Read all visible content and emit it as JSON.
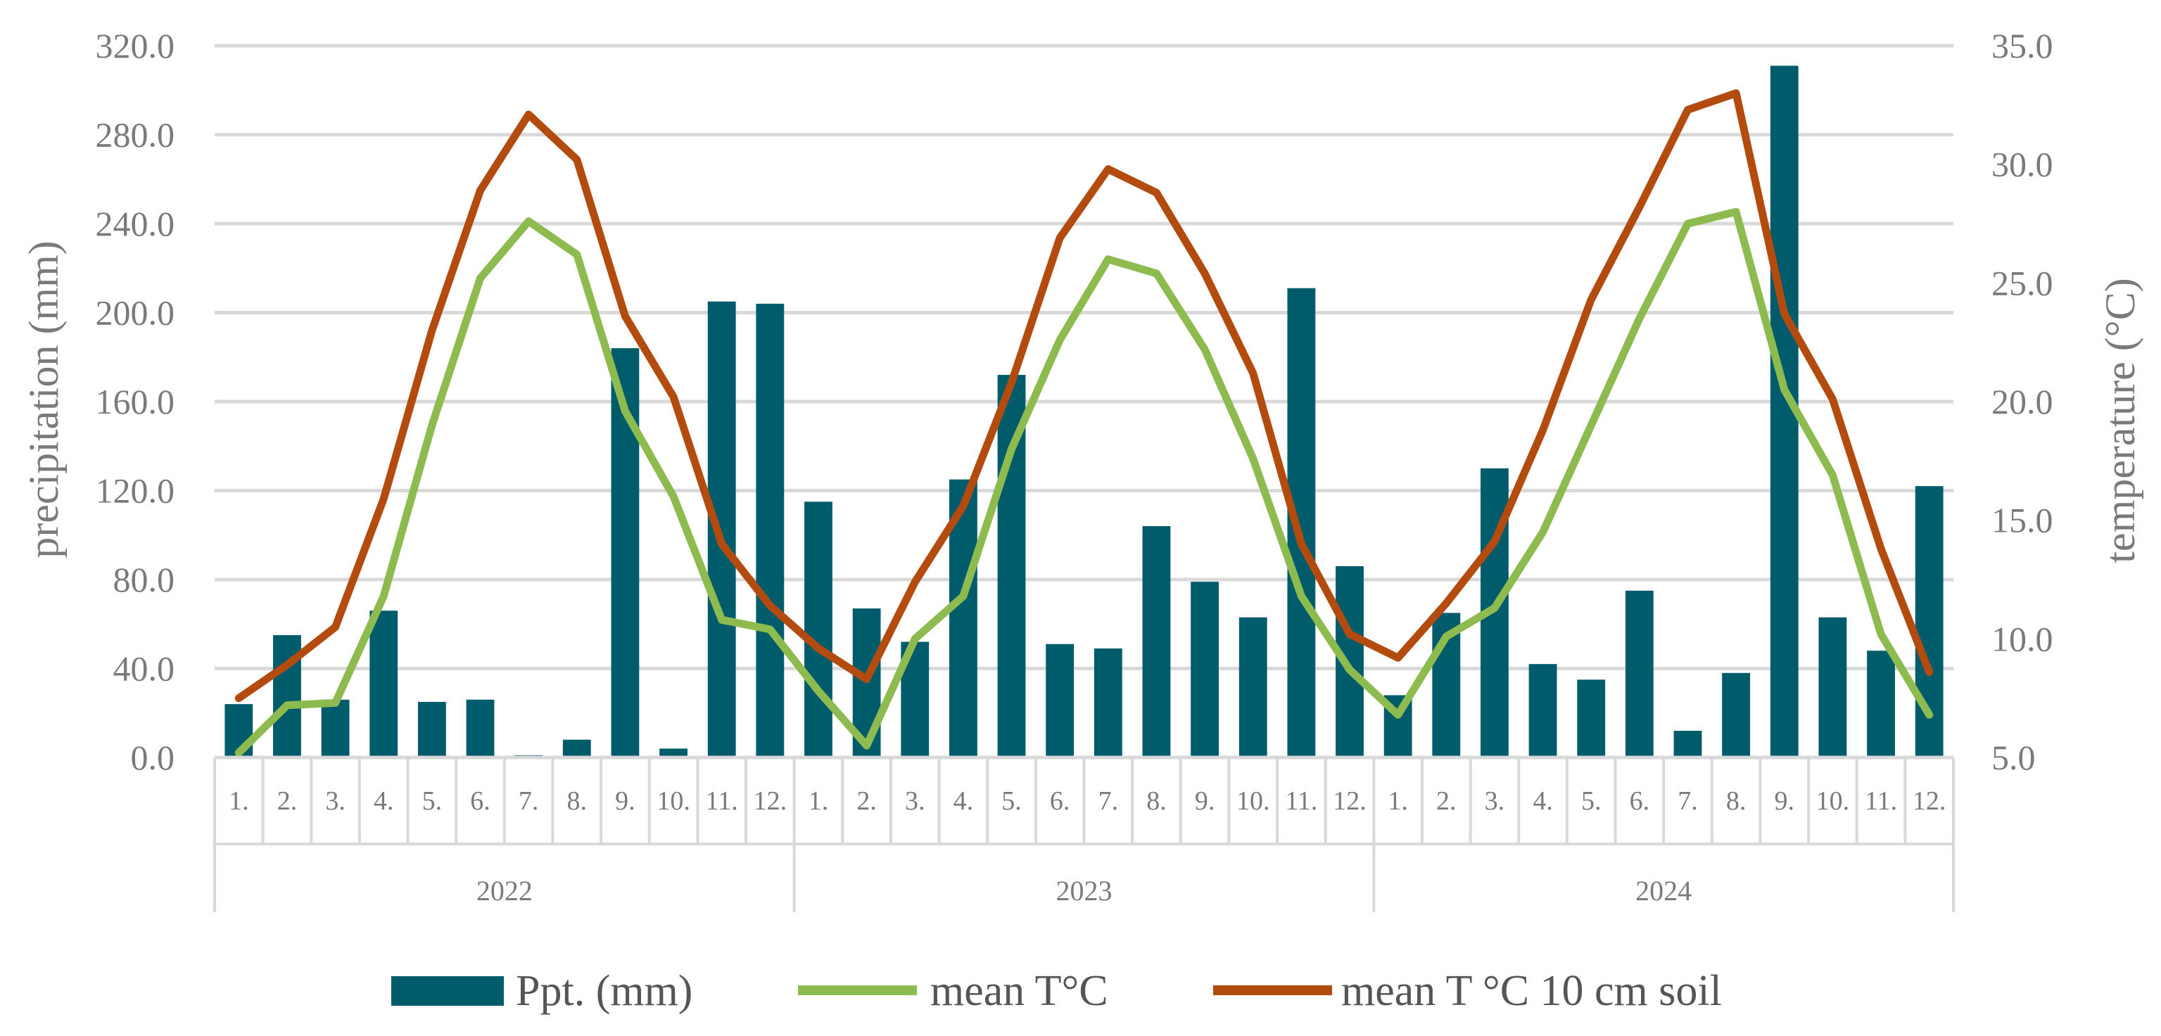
{
  "chart_data": {
    "type": "bar+line",
    "categories": [
      "1.",
      "2.",
      "3.",
      "4.",
      "5.",
      "6.",
      "7.",
      "8.",
      "9.",
      "10.",
      "11.",
      "12.",
      "1.",
      "2.",
      "3.",
      "4.",
      "5.",
      "6.",
      "7.",
      "8.",
      "9.",
      "10.",
      "11.",
      "12.",
      "1.",
      "2.",
      "3.",
      "4.",
      "5.",
      "6.",
      "7.",
      "8.",
      "9.",
      "10.",
      "11.",
      "12."
    ],
    "groups": [
      {
        "label": "2022",
        "span": 12
      },
      {
        "label": "2023",
        "span": 12
      },
      {
        "label": "2024",
        "span": 12
      }
    ],
    "y_left": {
      "label": "precipitation (mm)",
      "lim": [
        0,
        320
      ],
      "ticks": [
        "0.0",
        "40.0",
        "80.0",
        "120.0",
        "160.0",
        "200.0",
        "240.0",
        "280.0",
        "320.0"
      ]
    },
    "y_right": {
      "label": "temperature (°C)",
      "lim": [
        5,
        35
      ],
      "ticks": [
        "5.0",
        "10.0",
        "15.0",
        "20.0",
        "25.0",
        "30.0",
        "35.0"
      ]
    },
    "grid": true,
    "legend_position": "bottom",
    "series": [
      {
        "name": "Ppt. (mm)",
        "kind": "bar",
        "axis": "left",
        "color": "#005b6b",
        "values": [
          24,
          55,
          26,
          66,
          25,
          26,
          1,
          8,
          184,
          4,
          205,
          204,
          115,
          67,
          52,
          125,
          172,
          51,
          49,
          104,
          79,
          63,
          211,
          86,
          28,
          65,
          130,
          42,
          35,
          75,
          12,
          38,
          311,
          63,
          48,
          122
        ]
      },
      {
        "name": "mean T°C",
        "kind": "line",
        "axis": "right",
        "color": "#8dbb4f",
        "values": [
          5.2,
          7.2,
          7.3,
          11.8,
          19.0,
          25.2,
          27.6,
          26.2,
          19.6,
          16.0,
          10.8,
          10.4,
          7.8,
          5.5,
          10.0,
          11.8,
          18.0,
          22.6,
          26.0,
          25.4,
          22.2,
          17.6,
          11.8,
          8.7,
          6.8,
          10.1,
          11.3,
          14.5,
          19.0,
          23.5,
          27.5,
          28.0,
          20.5,
          16.9,
          10.2,
          6.8
        ]
      },
      {
        "name": "mean T °C 10 cm soil",
        "kind": "line",
        "axis": "right",
        "color": "#b34a0e",
        "values": [
          7.5,
          8.9,
          10.5,
          15.9,
          23.0,
          28.9,
          32.1,
          30.2,
          23.6,
          20.2,
          14.0,
          11.4,
          9.6,
          8.3,
          12.4,
          15.6,
          20.8,
          26.9,
          29.8,
          28.8,
          25.4,
          21.2,
          14.0,
          10.2,
          9.2,
          11.5,
          14.1,
          18.8,
          24.3,
          28.2,
          32.3,
          33.0,
          23.7,
          20.1,
          13.8,
          8.6
        ]
      }
    ]
  }
}
